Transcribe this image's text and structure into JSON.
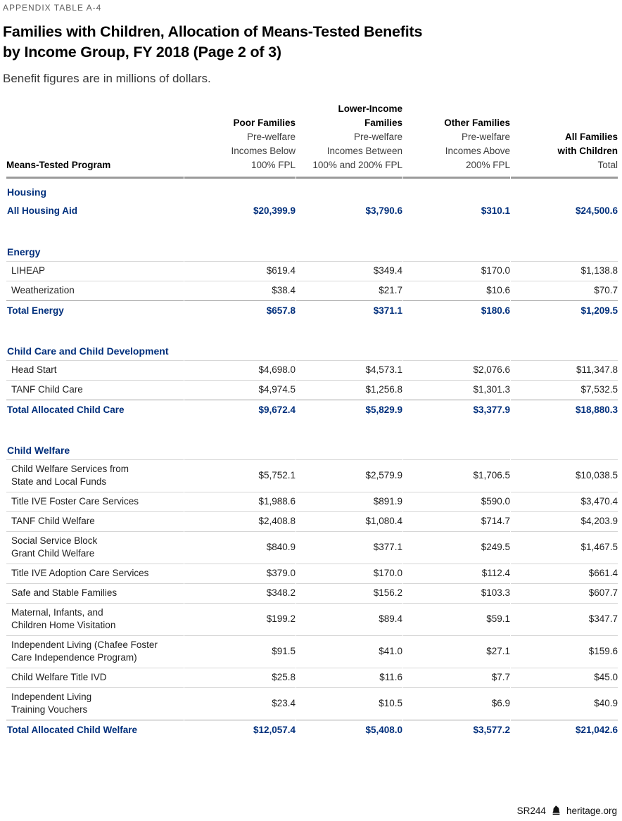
{
  "colors": {
    "accent_navy": "#002F7C",
    "header_rule_gray": "#9B9B9B",
    "item_line_gray": "#D6D6D6",
    "total_line_gray": "#A0A0A0"
  },
  "page": {
    "kicker": "APPENDIX TABLE A-4",
    "title_lines": [
      "Families with Children, Allocation of Means-Tested Benefits",
      "by Income Group, FY 2018 (Page 2 of 3)"
    ],
    "subtitle": "Benefit figures are in millions of dollars.",
    "footer": {
      "report_id": "SR244",
      "logo_icon": "liberty-bell-icon",
      "site": "heritage.org"
    }
  },
  "table": {
    "program_header": "Means-Tested Program",
    "columns": [
      {
        "title_lines": [
          "Poor Families"
        ],
        "sub_lines": [
          "Pre-welfare",
          "Incomes Below",
          "100% FPL"
        ]
      },
      {
        "title_lines": [
          "Lower-Income",
          "Families"
        ],
        "sub_lines": [
          "Pre-welfare",
          "Incomes Between",
          "100% and 200% FPL"
        ]
      },
      {
        "title_lines": [
          "Other Families"
        ],
        "sub_lines": [
          "Pre-welfare",
          "Incomes Above",
          "200% FPL"
        ]
      },
      {
        "title_lines": [
          "All Families",
          "with Children"
        ],
        "sub_lines": [
          "Total"
        ]
      }
    ],
    "sections": [
      {
        "name": "Housing",
        "rows": [
          {
            "type": "single_total",
            "label_lines": [
              "All Housing Aid"
            ],
            "values": [
              "$20,399.9",
              "$3,790.6",
              "$310.1",
              "$24,500.6"
            ]
          }
        ]
      },
      {
        "name": "Energy",
        "rows": [
          {
            "type": "item",
            "label_lines": [
              "LIHEAP"
            ],
            "values": [
              "$619.4",
              "$349.4",
              "$170.0",
              "$1,138.8"
            ]
          },
          {
            "type": "item",
            "label_lines": [
              "Weatherization"
            ],
            "values": [
              "$38.4",
              "$21.7",
              "$10.6",
              "$70.7"
            ]
          },
          {
            "type": "total",
            "label_lines": [
              "Total Energy"
            ],
            "values": [
              "$657.8",
              "$371.1",
              "$180.6",
              "$1,209.5"
            ]
          }
        ]
      },
      {
        "name": "Child Care and Child Development",
        "rows": [
          {
            "type": "item",
            "label_lines": [
              "Head Start"
            ],
            "values": [
              "$4,698.0",
              "$4,573.1",
              "$2,076.6",
              "$11,347.8"
            ]
          },
          {
            "type": "item",
            "label_lines": [
              "TANF Child Care"
            ],
            "values": [
              "$4,974.5",
              "$1,256.8",
              "$1,301.3",
              "$7,532.5"
            ]
          },
          {
            "type": "total",
            "label_lines": [
              "Total Allocated Child Care"
            ],
            "values": [
              "$9,672.4",
              "$5,829.9",
              "$3,377.9",
              "$18,880.3"
            ]
          }
        ]
      },
      {
        "name": "Child Welfare",
        "rows": [
          {
            "type": "item",
            "label_lines": [
              "Child Welfare Services from",
              "State and Local Funds"
            ],
            "values": [
              "$5,752.1",
              "$2,579.9",
              "$1,706.5",
              "$10,038.5"
            ]
          },
          {
            "type": "item",
            "label_lines": [
              "Title IVE Foster Care Services"
            ],
            "values": [
              "$1,988.6",
              "$891.9",
              "$590.0",
              "$3,470.4"
            ]
          },
          {
            "type": "item",
            "label_lines": [
              "TANF Child Welfare"
            ],
            "values": [
              "$2,408.8",
              "$1,080.4",
              "$714.7",
              "$4,203.9"
            ]
          },
          {
            "type": "item",
            "label_lines": [
              "Social Service Block",
              "Grant Child Welfare"
            ],
            "values": [
              "$840.9",
              "$377.1",
              "$249.5",
              "$1,467.5"
            ]
          },
          {
            "type": "item",
            "label_lines": [
              "Title IVE Adoption Care Services"
            ],
            "values": [
              "$379.0",
              "$170.0",
              "$112.4",
              "$661.4"
            ]
          },
          {
            "type": "item",
            "label_lines": [
              "Safe and Stable Families"
            ],
            "values": [
              "$348.2",
              "$156.2",
              "$103.3",
              "$607.7"
            ]
          },
          {
            "type": "item",
            "label_lines": [
              "Maternal, Infants, and",
              "Children Home Visitation"
            ],
            "values": [
              "$199.2",
              "$89.4",
              "$59.1",
              "$347.7"
            ]
          },
          {
            "type": "item",
            "label_lines": [
              "Independent Living (Chafee Foster",
              "Care Independence Program)"
            ],
            "values": [
              "$91.5",
              "$41.0",
              "$27.1",
              "$159.6"
            ]
          },
          {
            "type": "item",
            "label_lines": [
              "Child Welfare Title IVD"
            ],
            "values": [
              "$25.8",
              "$11.6",
              "$7.7",
              "$45.0"
            ]
          },
          {
            "type": "item",
            "label_lines": [
              "Independent Living",
              "Training Vouchers"
            ],
            "values": [
              "$23.4",
              "$10.5",
              "$6.9",
              "$40.9"
            ]
          },
          {
            "type": "total",
            "label_lines": [
              "Total Allocated Child Welfare"
            ],
            "values": [
              "$12,057.4",
              "$5,408.0",
              "$3,577.2",
              "$21,042.6"
            ]
          }
        ]
      }
    ]
  }
}
